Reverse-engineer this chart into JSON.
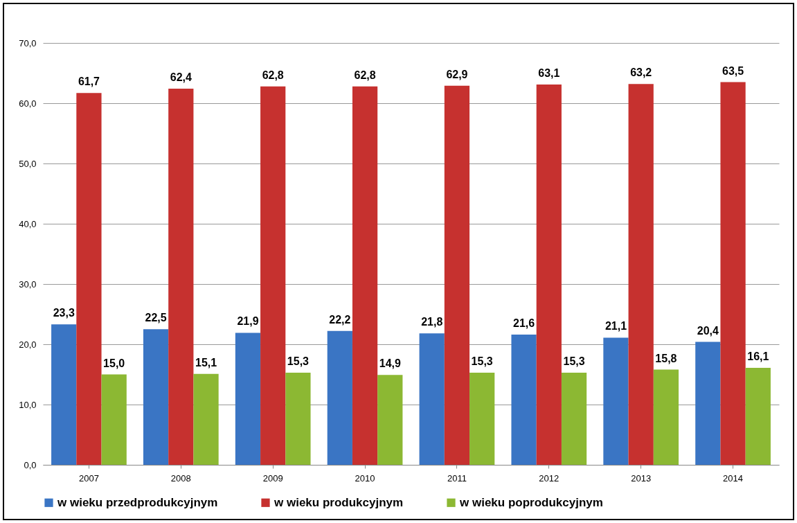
{
  "chart_data": {
    "type": "bar",
    "categories": [
      "2007",
      "2008",
      "2009",
      "2010",
      "2011",
      "2012",
      "2013",
      "2014"
    ],
    "series": [
      {
        "name": "w wieku przedprodukcyjnym",
        "color": "#3a75c4",
        "values": [
          23.3,
          22.5,
          21.9,
          22.2,
          21.8,
          21.6,
          21.1,
          20.4
        ],
        "value_labels": [
          "23,3",
          "22,5",
          "21,9",
          "22,2",
          "21,8",
          "21,6",
          "21,1",
          "20,4"
        ]
      },
      {
        "name": "w wieku produkcyjnym",
        "color": "#c6312f",
        "values": [
          61.7,
          62.4,
          62.8,
          62.8,
          62.9,
          63.1,
          63.2,
          63.5
        ],
        "value_labels": [
          "61,7",
          "62,4",
          "62,8",
          "62,8",
          "62,9",
          "63,1",
          "63,2",
          "63,5"
        ]
      },
      {
        "name": "w wieku poprodukcyjnym",
        "color": "#8cb833",
        "values": [
          15.0,
          15.1,
          15.3,
          14.9,
          15.3,
          15.3,
          15.8,
          16.1
        ],
        "value_labels": [
          "15,0",
          "15,1",
          "15,3",
          "14,9",
          "15,3",
          "15,3",
          "15,8",
          "16,1"
        ]
      }
    ],
    "ylim": [
      0,
      70
    ],
    "yticks": [
      {
        "value": 0,
        "label": "0,0"
      },
      {
        "value": 10,
        "label": "10,0"
      },
      {
        "value": 20,
        "label": "20,0"
      },
      {
        "value": 30,
        "label": "30,0"
      },
      {
        "value": 40,
        "label": "40,0"
      },
      {
        "value": 50,
        "label": "50,0"
      },
      {
        "value": 60,
        "label": "60,0"
      },
      {
        "value": 70,
        "label": "70,0"
      }
    ],
    "grid": "y",
    "legend": "bottom"
  }
}
